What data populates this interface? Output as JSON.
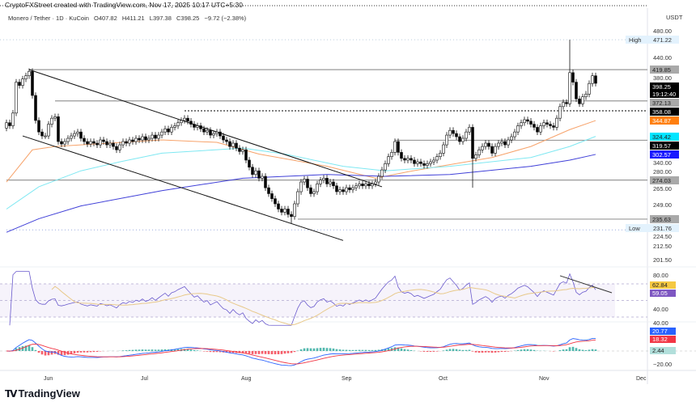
{
  "header": {
    "attribution": "CryptoFXStreet created with TradingView.com, Nov 17, 2025 10:17 UTC+5:30",
    "symbol": "Monero / Tether · 1D · KuCoin",
    "open": "O407.82",
    "high": "H411.21",
    "low": "L397.38",
    "close": "C398.25",
    "change": "−9.72 (−2.38%)",
    "currency": "USDT"
  },
  "logo": {
    "text": "TradingView"
  },
  "colors": {
    "ma_orange": "#f7a36b",
    "ma_cyan": "#7fe8f2",
    "ma_blue": "#4040d8",
    "bull": "#ffffff",
    "bear": "#000000",
    "rsi": "#6a5acd",
    "rsi_ma": "#e8c98a",
    "macd": "#2962ff",
    "signal": "#f23645",
    "hist_pos": "#26a69a",
    "hist_neg": "#f23645"
  },
  "chart_data": {
    "type": "candlestick",
    "title": "Monero / Tether · 1D · KuCoin",
    "scale": "log",
    "x_ticks": [
      "Jun",
      "Jul",
      "Aug",
      "Sep",
      "Oct",
      "Nov",
      "Dec"
    ],
    "y_ticks": [
      "480.00",
      "440.00",
      "380.00",
      "340.00",
      "280.00",
      "265.00",
      "249.00",
      "224.50",
      "212.50",
      "201.50"
    ],
    "candles": [
      {
        "month": "2025-05",
        "start_day": 19,
        "close": [
          342,
          338,
          355,
          400,
          395,
          405,
          410,
          417,
          380,
          345,
          330,
          325,
          325
        ]
      },
      {
        "month": "2025-06",
        "start_day": 1,
        "close": [
          340,
          348,
          350,
          318,
          315,
          318,
          322,
          325,
          328,
          330,
          322,
          318,
          315,
          318,
          316,
          314,
          320,
          318,
          314,
          316,
          312,
          308,
          314,
          318,
          316,
          320,
          318,
          322,
          320,
          324
        ]
      },
      {
        "month": "2025-07",
        "start_day": 1,
        "close": [
          320,
          322,
          326,
          322,
          326,
          330,
          334,
          330,
          336,
          338,
          342,
          345,
          348,
          344,
          340,
          336,
          338,
          334,
          330,
          332,
          326,
          328,
          330,
          325,
          320,
          318,
          312,
          316,
          310,
          306,
          308
        ]
      },
      {
        "month": "2025-08",
        "start_day": 1,
        "close": [
          296,
          288,
          280,
          284,
          276,
          278,
          266,
          260,
          255,
          250,
          245,
          242,
          245,
          240,
          238,
          250,
          262,
          272,
          275,
          266,
          260,
          262,
          270,
          274,
          276,
          270,
          272,
          268,
          262,
          264,
          262
        ]
      },
      {
        "month": "2025-09",
        "start_day": 1,
        "close": [
          266,
          264,
          266,
          268,
          270,
          268,
          270,
          268,
          270,
          272,
          278,
          285,
          292,
          300,
          305,
          318,
          305,
          298,
          296,
          298,
          296,
          292,
          294,
          292,
          290,
          292,
          294,
          296,
          300,
          304
        ]
      },
      {
        "month": "2025-10",
        "start_day": 1,
        "close": [
          314,
          326,
          332,
          328,
          324,
          318,
          322,
          330,
          336,
          298,
          302,
          308,
          312,
          316,
          312,
          304,
          312,
          316,
          318,
          314,
          320,
          324,
          330,
          338,
          342,
          346,
          344,
          340,
          336,
          330,
          338
        ]
      },
      {
        "month": "2025-11",
        "start_day": 1,
        "close": [
          342,
          340,
          338,
          336,
          348,
          364,
          370,
          368,
          415,
          400,
          375,
          368,
          378,
          382,
          398,
          410,
          398.25
        ]
      }
    ],
    "wicks": [
      {
        "date": "2025-11-09",
        "high": 471.22
      },
      {
        "date": "2025-08-15",
        "low": 231.76
      },
      {
        "date": "2025-10-10",
        "low": 266
      }
    ],
    "moving_averages": [
      {
        "color": "#f7a36b",
        "last": "344.87",
        "points": [
          [
            "2025-05-19",
            272
          ],
          [
            "2025-05-27",
            308
          ],
          [
            "2025-06-03",
            312
          ],
          [
            "2025-06-11",
            314
          ],
          [
            "2025-07-06",
            320
          ],
          [
            "2025-07-23",
            317
          ],
          [
            "2025-08-05",
            303
          ],
          [
            "2025-08-26",
            289
          ],
          [
            "2025-09-10",
            276
          ],
          [
            "2025-09-20",
            283
          ],
          [
            "2025-10-16",
            299
          ],
          [
            "2025-10-28",
            312
          ],
          [
            "2025-11-09",
            333
          ],
          [
            "2025-11-17",
            344.87
          ]
        ]
      },
      {
        "color": "#7fe8f2",
        "last": "324.42",
        "points": [
          [
            "2025-05-19",
            245
          ],
          [
            "2025-05-29",
            267
          ],
          [
            "2025-06-11",
            284
          ],
          [
            "2025-06-23",
            294
          ],
          [
            "2025-07-06",
            304
          ],
          [
            "2025-07-31",
            310
          ],
          [
            "2025-08-13",
            303
          ],
          [
            "2025-08-31",
            289
          ],
          [
            "2025-09-13",
            284
          ],
          [
            "2025-10-03",
            289
          ],
          [
            "2025-10-28",
            299
          ],
          [
            "2025-11-09",
            312
          ],
          [
            "2025-11-17",
            324.42
          ]
        ]
      },
      {
        "color": "#4040d8",
        "last": "302.57",
        "points": [
          [
            "2025-05-19",
            224
          ],
          [
            "2025-05-29",
            236
          ],
          [
            "2025-06-11",
            248
          ],
          [
            "2025-07-06",
            263
          ],
          [
            "2025-07-31",
            276
          ],
          [
            "2025-08-26",
            280
          ],
          [
            "2025-09-13",
            278
          ],
          [
            "2025-10-03",
            280
          ],
          [
            "2025-10-28",
            289
          ],
          [
            "2025-11-09",
            296
          ],
          [
            "2025-11-17",
            302.57
          ]
        ]
      }
    ],
    "levels": [
      {
        "price": 419.85,
        "label": "419.85",
        "from": "2025-05-26",
        "style": "solid",
        "tag_bg": "#a9a9a9",
        "tag_fg": "#222"
      },
      {
        "price": 372.13,
        "label": "372.13",
        "from": "2025-06-03",
        "style": "solid",
        "tag_bg": "#a9a9a9",
        "tag_fg": "#222"
      },
      {
        "price": 358.08,
        "label": "358.08",
        "from": "2025-07-13",
        "style": "dotted",
        "tag_bg": "#000000",
        "tag_fg": "#fff"
      },
      {
        "price": 319.57,
        "label": "319.57",
        "from": "2025-09-16",
        "style": "solid",
        "tag_bg": "#000000",
        "tag_fg": "#fff"
      },
      {
        "price": 274.03,
        "label": "274.03",
        "from": "2025-05-19",
        "style": "solid",
        "tag_bg": "#a9a9a9",
        "tag_fg": "#222"
      },
      {
        "price": 235.63,
        "label": "235.63",
        "from": "2025-08-17",
        "style": "solid",
        "tag_bg": "#a9a9a9",
        "tag_fg": "#222"
      }
    ],
    "trendlines": [
      {
        "from": [
          "2025-05-26",
          419.85
        ],
        "to": [
          "2025-09-12",
          267
        ]
      },
      {
        "from": [
          "2025-05-24",
          325
        ],
        "to": [
          "2025-08-31",
          217
        ]
      }
    ],
    "last_price": {
      "value": "398.25",
      "countdown": "19:12:40",
      "price": 398.25
    },
    "high_marker": {
      "label": "High",
      "value": "471.22",
      "price": 471.22
    },
    "low_marker": {
      "label": "Low",
      "value": "231.76",
      "price": 231.76
    },
    "rsi": {
      "axis": [
        "80.00",
        "40.00"
      ],
      "tags": [
        {
          "value": "62.84",
          "bg": "#f5c842",
          "fg": "#222"
        },
        {
          "value": "59.05",
          "bg": "#7e57c2",
          "fg": "#fff"
        }
      ],
      "trendline": {
        "from": [
          "2025-11-06",
          79.8
        ],
        "to": [
          "2025-11-22",
          59.3
        ]
      }
    },
    "macd": {
      "axis": [
        "40.00",
        "−20.00"
      ],
      "tags": [
        {
          "value": "20.77",
          "bg": "#2962ff",
          "fg": "#fff"
        },
        {
          "value": "18.32",
          "bg": "#f23645",
          "fg": "#fff"
        },
        {
          "value": "2.44",
          "bg": "#b2dfdb",
          "fg": "#222"
        }
      ]
    }
  }
}
